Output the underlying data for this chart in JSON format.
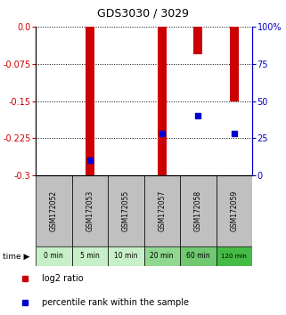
{
  "title": "GDS3030 / 3029",
  "samples": [
    "GSM172052",
    "GSM172053",
    "GSM172055",
    "GSM172057",
    "GSM172058",
    "GSM172059"
  ],
  "time_labels": [
    "0 min",
    "5 min",
    "10 min",
    "20 min",
    "60 min",
    "120 min"
  ],
  "log2_ratio": [
    0.0,
    -0.3,
    0.0,
    -0.3,
    -0.055,
    -0.15
  ],
  "percentile_rank": [
    null,
    10,
    null,
    28,
    40,
    28
  ],
  "ylim_left": [
    -0.3,
    0.0
  ],
  "ylim_right": [
    0,
    100
  ],
  "yticks_left": [
    0.0,
    -0.075,
    -0.15,
    -0.225,
    -0.3
  ],
  "yticks_right": [
    0,
    25,
    50,
    75,
    100
  ],
  "bar_color": "#cc0000",
  "dot_color": "#0000cc",
  "left_axis_color": "#cc0000",
  "right_axis_color": "#0000cc",
  "sample_box_color": "#c0c0c0",
  "time_box_colors": [
    "#c8f0c8",
    "#c8f0c8",
    "#c8f0c8",
    "#90d890",
    "#70c870",
    "#44bb44"
  ],
  "legend_log2_label": "log2 ratio",
  "legend_percentile_label": "percentile rank within the sample",
  "bar_width": 0.25
}
